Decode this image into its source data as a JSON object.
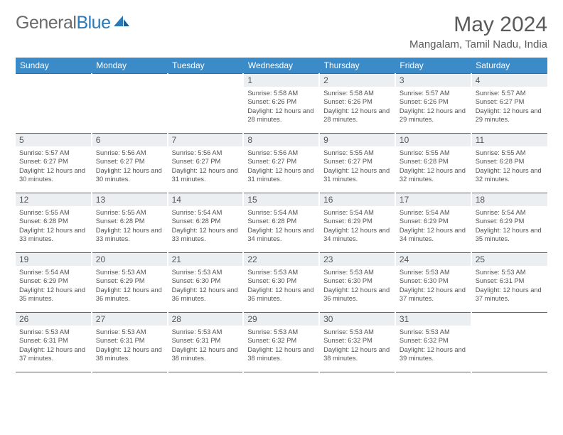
{
  "brand": {
    "general": "General",
    "blue": "Blue"
  },
  "title": "May 2024",
  "location": "Mangalam, Tamil Nadu, India",
  "colors": {
    "header_bg": "#3b8bc9",
    "header_text": "#ffffff",
    "rule": "#2f6fa3",
    "daynum_bg": "#eceff1",
    "body_text": "#525252",
    "title_text": "#5a5a5a",
    "logo_gray": "#6b6b6b",
    "logo_blue": "#2a7ab8"
  },
  "dow": [
    "Sunday",
    "Monday",
    "Tuesday",
    "Wednesday",
    "Thursday",
    "Friday",
    "Saturday"
  ],
  "weeks": [
    [
      {
        "n": "",
        "sr": "",
        "ss": "",
        "dl": ""
      },
      {
        "n": "",
        "sr": "",
        "ss": "",
        "dl": ""
      },
      {
        "n": "",
        "sr": "",
        "ss": "",
        "dl": ""
      },
      {
        "n": "1",
        "sr": "Sunrise: 5:58 AM",
        "ss": "Sunset: 6:26 PM",
        "dl": "Daylight: 12 hours and 28 minutes."
      },
      {
        "n": "2",
        "sr": "Sunrise: 5:58 AM",
        "ss": "Sunset: 6:26 PM",
        "dl": "Daylight: 12 hours and 28 minutes."
      },
      {
        "n": "3",
        "sr": "Sunrise: 5:57 AM",
        "ss": "Sunset: 6:26 PM",
        "dl": "Daylight: 12 hours and 29 minutes."
      },
      {
        "n": "4",
        "sr": "Sunrise: 5:57 AM",
        "ss": "Sunset: 6:27 PM",
        "dl": "Daylight: 12 hours and 29 minutes."
      }
    ],
    [
      {
        "n": "5",
        "sr": "Sunrise: 5:57 AM",
        "ss": "Sunset: 6:27 PM",
        "dl": "Daylight: 12 hours and 30 minutes."
      },
      {
        "n": "6",
        "sr": "Sunrise: 5:56 AM",
        "ss": "Sunset: 6:27 PM",
        "dl": "Daylight: 12 hours and 30 minutes."
      },
      {
        "n": "7",
        "sr": "Sunrise: 5:56 AM",
        "ss": "Sunset: 6:27 PM",
        "dl": "Daylight: 12 hours and 31 minutes."
      },
      {
        "n": "8",
        "sr": "Sunrise: 5:56 AM",
        "ss": "Sunset: 6:27 PM",
        "dl": "Daylight: 12 hours and 31 minutes."
      },
      {
        "n": "9",
        "sr": "Sunrise: 5:55 AM",
        "ss": "Sunset: 6:27 PM",
        "dl": "Daylight: 12 hours and 31 minutes."
      },
      {
        "n": "10",
        "sr": "Sunrise: 5:55 AM",
        "ss": "Sunset: 6:28 PM",
        "dl": "Daylight: 12 hours and 32 minutes."
      },
      {
        "n": "11",
        "sr": "Sunrise: 5:55 AM",
        "ss": "Sunset: 6:28 PM",
        "dl": "Daylight: 12 hours and 32 minutes."
      }
    ],
    [
      {
        "n": "12",
        "sr": "Sunrise: 5:55 AM",
        "ss": "Sunset: 6:28 PM",
        "dl": "Daylight: 12 hours and 33 minutes."
      },
      {
        "n": "13",
        "sr": "Sunrise: 5:55 AM",
        "ss": "Sunset: 6:28 PM",
        "dl": "Daylight: 12 hours and 33 minutes."
      },
      {
        "n": "14",
        "sr": "Sunrise: 5:54 AM",
        "ss": "Sunset: 6:28 PM",
        "dl": "Daylight: 12 hours and 33 minutes."
      },
      {
        "n": "15",
        "sr": "Sunrise: 5:54 AM",
        "ss": "Sunset: 6:28 PM",
        "dl": "Daylight: 12 hours and 34 minutes."
      },
      {
        "n": "16",
        "sr": "Sunrise: 5:54 AM",
        "ss": "Sunset: 6:29 PM",
        "dl": "Daylight: 12 hours and 34 minutes."
      },
      {
        "n": "17",
        "sr": "Sunrise: 5:54 AM",
        "ss": "Sunset: 6:29 PM",
        "dl": "Daylight: 12 hours and 34 minutes."
      },
      {
        "n": "18",
        "sr": "Sunrise: 5:54 AM",
        "ss": "Sunset: 6:29 PM",
        "dl": "Daylight: 12 hours and 35 minutes."
      }
    ],
    [
      {
        "n": "19",
        "sr": "Sunrise: 5:54 AM",
        "ss": "Sunset: 6:29 PM",
        "dl": "Daylight: 12 hours and 35 minutes."
      },
      {
        "n": "20",
        "sr": "Sunrise: 5:53 AM",
        "ss": "Sunset: 6:29 PM",
        "dl": "Daylight: 12 hours and 36 minutes."
      },
      {
        "n": "21",
        "sr": "Sunrise: 5:53 AM",
        "ss": "Sunset: 6:30 PM",
        "dl": "Daylight: 12 hours and 36 minutes."
      },
      {
        "n": "22",
        "sr": "Sunrise: 5:53 AM",
        "ss": "Sunset: 6:30 PM",
        "dl": "Daylight: 12 hours and 36 minutes."
      },
      {
        "n": "23",
        "sr": "Sunrise: 5:53 AM",
        "ss": "Sunset: 6:30 PM",
        "dl": "Daylight: 12 hours and 36 minutes."
      },
      {
        "n": "24",
        "sr": "Sunrise: 5:53 AM",
        "ss": "Sunset: 6:30 PM",
        "dl": "Daylight: 12 hours and 37 minutes."
      },
      {
        "n": "25",
        "sr": "Sunrise: 5:53 AM",
        "ss": "Sunset: 6:31 PM",
        "dl": "Daylight: 12 hours and 37 minutes."
      }
    ],
    [
      {
        "n": "26",
        "sr": "Sunrise: 5:53 AM",
        "ss": "Sunset: 6:31 PM",
        "dl": "Daylight: 12 hours and 37 minutes."
      },
      {
        "n": "27",
        "sr": "Sunrise: 5:53 AM",
        "ss": "Sunset: 6:31 PM",
        "dl": "Daylight: 12 hours and 38 minutes."
      },
      {
        "n": "28",
        "sr": "Sunrise: 5:53 AM",
        "ss": "Sunset: 6:31 PM",
        "dl": "Daylight: 12 hours and 38 minutes."
      },
      {
        "n": "29",
        "sr": "Sunrise: 5:53 AM",
        "ss": "Sunset: 6:32 PM",
        "dl": "Daylight: 12 hours and 38 minutes."
      },
      {
        "n": "30",
        "sr": "Sunrise: 5:53 AM",
        "ss": "Sunset: 6:32 PM",
        "dl": "Daylight: 12 hours and 38 minutes."
      },
      {
        "n": "31",
        "sr": "Sunrise: 5:53 AM",
        "ss": "Sunset: 6:32 PM",
        "dl": "Daylight: 12 hours and 39 minutes."
      },
      {
        "n": "",
        "sr": "",
        "ss": "",
        "dl": ""
      }
    ]
  ]
}
